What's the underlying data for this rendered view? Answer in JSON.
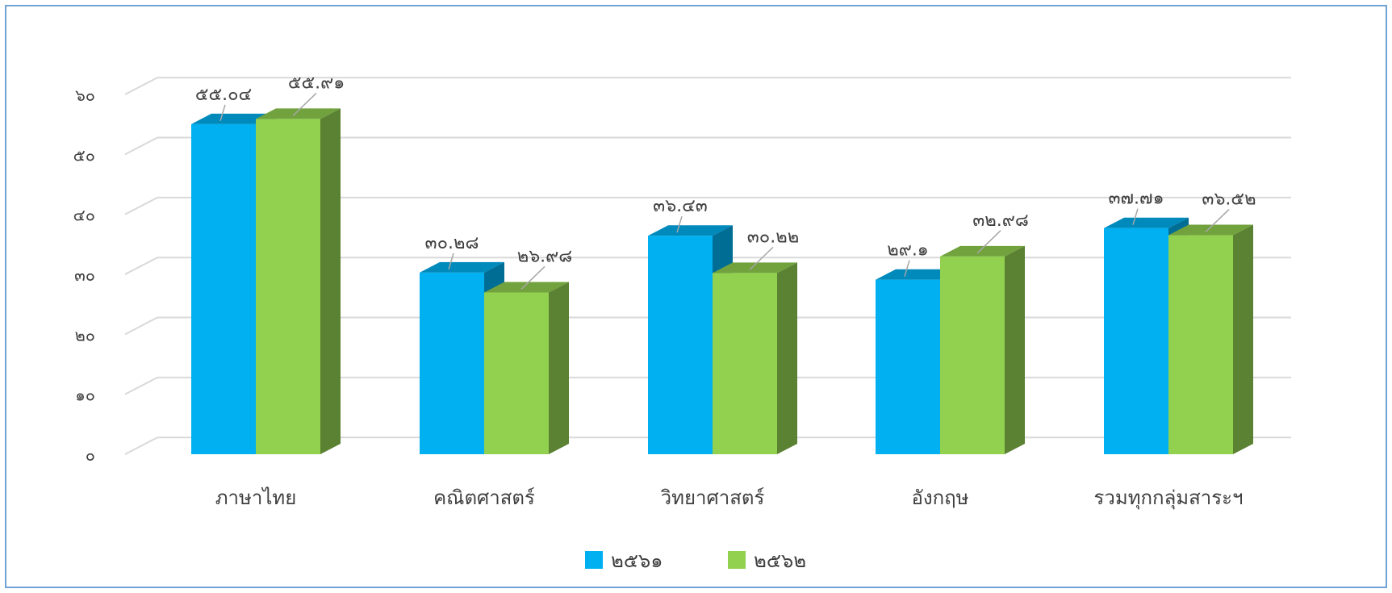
{
  "chart_data": {
    "type": "bar",
    "categories": [
      "ภาษาไทย",
      "คณิตศาสตร์",
      "วิทยาศาสตร์",
      "อังกฤษ",
      "รวมทุกกลุ่มสาระฯ"
    ],
    "series": [
      {
        "name": "๒๕๖๑",
        "color": "#00b0f0",
        "values": [
          55.04,
          30.28,
          36.43,
          29.1,
          37.71
        ],
        "labels": [
          "๕๕.๐๔",
          "๓๐.๒๘",
          "๓๖.๔๓",
          "๒๙.๑",
          "๓๗.๗๑"
        ]
      },
      {
        "name": "๒๕๖๒",
        "color": "#92d050",
        "values": [
          55.91,
          26.98,
          30.22,
          32.98,
          36.52
        ],
        "labels": [
          "๕๕.๙๑",
          "๒๖.๙๘",
          "๓๐.๒๒",
          "๓๒.๙๘",
          "๓๖.๕๒"
        ]
      }
    ],
    "yticks": [
      0,
      10,
      20,
      30,
      40,
      50,
      60
    ],
    "ytick_labels": [
      "๐",
      "๑๐",
      "๒๐",
      "๓๐",
      "๔๐",
      "๕๐",
      "๖๐"
    ],
    "ylim": [
      0,
      60
    ],
    "grid": true,
    "legend": "bottom",
    "style": "3d-clustered-column"
  }
}
